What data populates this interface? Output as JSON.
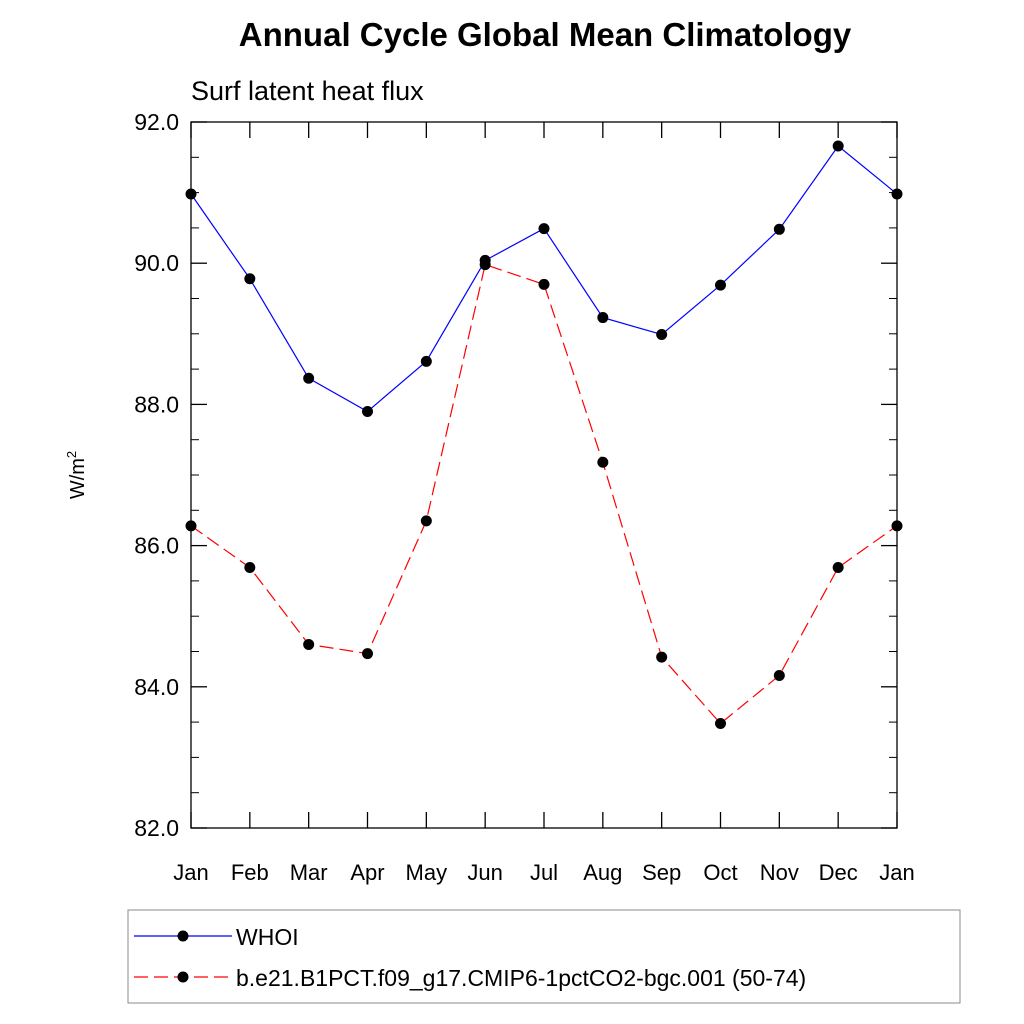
{
  "chart_data": {
    "type": "line",
    "title": "Annual Cycle Global Mean Climatology",
    "subtitle": "Surf latent heat flux",
    "ylabel": "W/m",
    "ylabel_sup": "2",
    "xlabel": "",
    "categories": [
      "Jan",
      "Feb",
      "Mar",
      "Apr",
      "May",
      "Jun",
      "Jul",
      "Aug",
      "Sep",
      "Oct",
      "Nov",
      "Dec",
      "Jan"
    ],
    "ylim": [
      82.0,
      92.0
    ],
    "yticks": [
      82.0,
      84.0,
      86.0,
      88.0,
      90.0,
      92.0
    ],
    "ytick_labels": [
      "82.0",
      "84.0",
      "86.0",
      "88.0",
      "90.0",
      "92.0"
    ],
    "grid": false,
    "legend_position": "bottom",
    "series": [
      {
        "name": "WHOI",
        "color": "#0000ff",
        "line_style": "solid",
        "marker": "filled-circle",
        "values": [
          90.98,
          89.78,
          88.37,
          87.9,
          88.61,
          90.04,
          90.49,
          89.23,
          88.99,
          89.69,
          90.48,
          91.66,
          90.98
        ]
      },
      {
        "name": "b.e21.B1PCT.f09_g17.CMIP6-1pctCO2-bgc.001 (50-74)",
        "color": "#ff0000",
        "line_style": "dashed",
        "marker": "filled-circle",
        "values": [
          86.28,
          85.69,
          84.6,
          84.47,
          86.35,
          89.98,
          89.7,
          87.18,
          84.42,
          83.48,
          84.16,
          85.69,
          86.28
        ]
      }
    ]
  }
}
